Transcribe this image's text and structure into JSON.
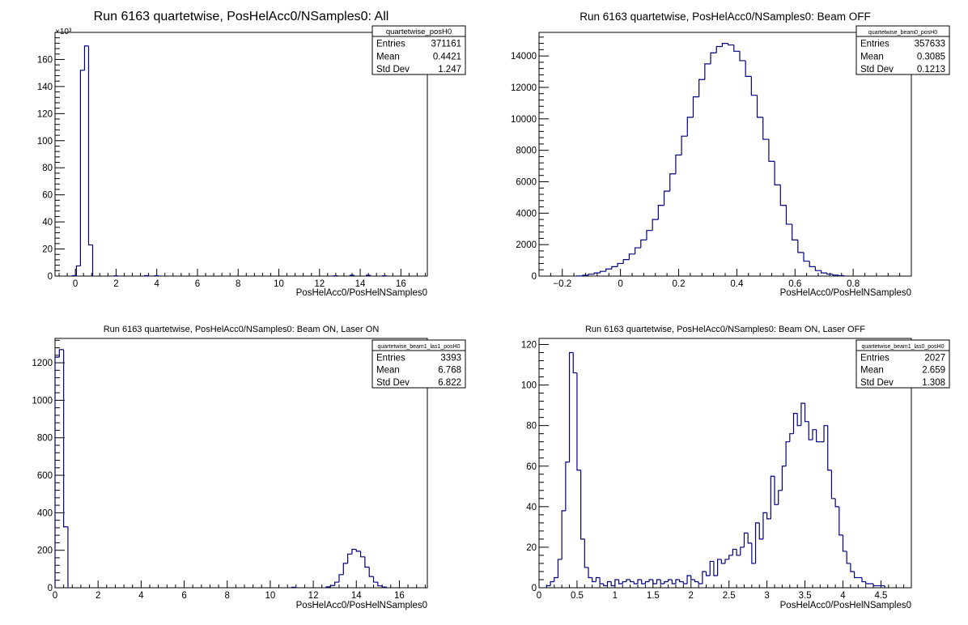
{
  "axis_color": "#000000",
  "line_color": "#000080",
  "chart_data": [
    {
      "type": "histogram",
      "title": "Run 6163 quartetwise, PosHelAcc0/NSamples0: All",
      "xlabel": "PosHelAcc0/PosHelNSamples0",
      "ylabel": "",
      "y_multiplier": "×10³",
      "xlim": [
        -1,
        17.3
      ],
      "ylim": [
        0,
        180
      ],
      "xticks": [
        0,
        2,
        4,
        6,
        8,
        10,
        12,
        14,
        16
      ],
      "xtick_labels": [
        "0",
        "2",
        "4",
        "6",
        "8",
        "10",
        "12",
        "14",
        "16"
      ],
      "yticks": [
        0,
        20,
        40,
        60,
        80,
        100,
        120,
        140,
        160
      ],
      "ytick_labels": [
        "0",
        "20",
        "40",
        "60",
        "80",
        "100",
        "120",
        "140",
        "160"
      ],
      "x": [
        -0.05,
        0.15,
        0.35,
        0.55,
        0.75,
        2.0,
        3.5,
        4.0,
        12.8,
        13.6,
        14.4,
        15.2
      ],
      "bin_width": 0.2,
      "values": [
        0.3,
        7.5,
        152,
        170,
        23,
        0.15,
        0.3,
        0.3,
        0.25,
        0.6,
        0.6,
        0.25
      ],
      "stats": {
        "name": "quartetwise_posH0",
        "rows": [
          {
            "label": "Entries",
            "value": "371161"
          },
          {
            "label": "Mean",
            "value": "0.4421"
          },
          {
            "label": "Std Dev",
            "value": "1.247"
          }
        ]
      }
    },
    {
      "type": "histogram",
      "title": "Run 6163 quartetwise, PosHelAcc0/NSamples0: Beam OFF",
      "xlabel": "PosHelAcc0/PosHelNSamples0",
      "ylabel": "",
      "xlim": [
        -0.28,
        1.0
      ],
      "ylim": [
        0,
        15500
      ],
      "xticks": [
        -0.2,
        0,
        0.2,
        0.4,
        0.6,
        0.8
      ],
      "xtick_labels": [
        "−0.2",
        "0",
        "0.2",
        "0.4",
        "0.6",
        "0.8"
      ],
      "yticks": [
        0,
        2000,
        4000,
        6000,
        8000,
        10000,
        12000,
        14000
      ],
      "ytick_labels": [
        "0",
        "2000",
        "4000",
        "6000",
        "8000",
        "10000",
        "12000",
        "14000"
      ],
      "x": [
        -0.14,
        -0.12,
        -0.1,
        -0.08,
        -0.06,
        -0.04,
        -0.02,
        0.0,
        0.02,
        0.04,
        0.06,
        0.08,
        0.1,
        0.12,
        0.14,
        0.16,
        0.18,
        0.2,
        0.22,
        0.24,
        0.26,
        0.28,
        0.3,
        0.32,
        0.34,
        0.36,
        0.38,
        0.4,
        0.42,
        0.44,
        0.46,
        0.48,
        0.5,
        0.52,
        0.54,
        0.56,
        0.58,
        0.6,
        0.62,
        0.64,
        0.66,
        0.68,
        0.7,
        0.72,
        0.74,
        0.76
      ],
      "bin_width": 0.02,
      "values": [
        10,
        50,
        120,
        200,
        300,
        450,
        600,
        800,
        1050,
        1400,
        1800,
        2300,
        2900,
        3600,
        4500,
        5400,
        6500,
        7700,
        8900,
        10100,
        11400,
        12500,
        13500,
        14200,
        14600,
        14800,
        14700,
        14300,
        13700,
        12700,
        11500,
        10100,
        8700,
        7300,
        5800,
        4500,
        3300,
        2300,
        1500,
        950,
        600,
        350,
        200,
        120,
        60,
        30
      ],
      "stats": {
        "name": "quartetwise_beam0_posH0",
        "rows": [
          {
            "label": "Entries",
            "value": "357633"
          },
          {
            "label": "Mean",
            "value": "0.3085"
          },
          {
            "label": "Std Dev",
            "value": "0.1213"
          }
        ]
      }
    },
    {
      "type": "histogram",
      "title": "Run 6163 quartetwise, PosHelAcc0/NSamples0: Beam ON, Laser ON",
      "xlabel": "PosHelAcc0/PosHelNSamples0",
      "ylabel": "",
      "xlim": [
        0,
        17.3
      ],
      "ylim": [
        0,
        1330
      ],
      "xticks": [
        0,
        2,
        4,
        6,
        8,
        10,
        12,
        14,
        16
      ],
      "xtick_labels": [
        "0",
        "2",
        "4",
        "6",
        "8",
        "10",
        "12",
        "14",
        "16"
      ],
      "yticks": [
        0,
        200,
        400,
        600,
        800,
        1000,
        1200
      ],
      "ytick_labels": [
        "0",
        "200",
        "400",
        "600",
        "800",
        "1000",
        "1200"
      ],
      "x": [
        0.1,
        0.3,
        0.5,
        11.1,
        12.7,
        12.9,
        13.1,
        13.3,
        13.5,
        13.7,
        13.9,
        14.1,
        14.3,
        14.5,
        14.7,
        14.9,
        15.1,
        15.3
      ],
      "bin_width": 0.2,
      "values": [
        1230,
        1270,
        325,
        3,
        5,
        12,
        30,
        70,
        130,
        180,
        205,
        195,
        165,
        110,
        60,
        30,
        10,
        4
      ],
      "stats": {
        "name": "quartetwise_beam1_las1_posH0",
        "rows": [
          {
            "label": "Entries",
            "value": "3393"
          },
          {
            "label": "Mean",
            "value": "6.768"
          },
          {
            "label": "Std Dev",
            "value": "6.822"
          }
        ]
      }
    },
    {
      "type": "histogram",
      "title": "Run 6163 quartetwise, PosHelAcc0/NSamples0: Beam ON, Laser OFF",
      "xlabel": "PosHelAcc0/PosHelNSamples0",
      "ylabel": "",
      "xlim": [
        0,
        4.9
      ],
      "ylim": [
        0,
        123
      ],
      "xticks": [
        0,
        0.5,
        1,
        1.5,
        2,
        2.5,
        3,
        3.5,
        4,
        4.5
      ],
      "xtick_labels": [
        "0",
        "0.5",
        "1",
        "1.5",
        "2",
        "2.5",
        "3",
        "3.5",
        "4",
        "4.5"
      ],
      "yticks": [
        0,
        20,
        40,
        60,
        80,
        100,
        120
      ],
      "ytick_labels": [
        "0",
        "20",
        "40",
        "60",
        "80",
        "100",
        "120"
      ],
      "x": [
        0.125,
        0.175,
        0.225,
        0.275,
        0.325,
        0.375,
        0.425,
        0.475,
        0.525,
        0.575,
        0.625,
        0.675,
        0.725,
        0.775,
        0.825,
        0.875,
        0.925,
        0.975,
        1.025,
        1.075,
        1.125,
        1.175,
        1.225,
        1.275,
        1.325,
        1.375,
        1.425,
        1.475,
        1.525,
        1.575,
        1.625,
        1.675,
        1.725,
        1.775,
        1.825,
        1.875,
        1.925,
        1.975,
        2.025,
        2.075,
        2.125,
        2.175,
        2.225,
        2.275,
        2.325,
        2.375,
        2.425,
        2.475,
        2.525,
        2.575,
        2.625,
        2.675,
        2.725,
        2.775,
        2.825,
        2.875,
        2.925,
        2.975,
        3.025,
        3.075,
        3.125,
        3.175,
        3.225,
        3.275,
        3.325,
        3.375,
        3.425,
        3.475,
        3.525,
        3.575,
        3.625,
        3.675,
        3.725,
        3.775,
        3.825,
        3.875,
        3.925,
        3.975,
        4.025,
        4.075,
        4.125,
        4.175,
        4.225,
        4.275,
        4.325,
        4.375,
        4.425,
        4.475,
        4.525
      ],
      "bin_width": 0.05,
      "values": [
        1,
        3,
        5,
        14,
        38,
        62,
        116,
        106,
        58,
        24,
        10,
        5,
        3,
        5,
        2,
        1,
        3,
        1,
        4,
        2,
        3,
        4,
        3,
        2,
        4,
        2,
        3,
        4,
        2,
        4,
        2,
        3,
        4,
        2,
        4,
        3,
        2,
        6,
        4,
        3,
        2,
        8,
        6,
        13,
        6,
        14,
        12,
        14,
        16,
        19,
        16,
        20,
        27,
        22,
        12,
        32,
        24,
        37,
        34,
        55,
        41,
        48,
        60,
        72,
        76,
        86,
        80,
        91,
        82,
        73,
        78,
        72,
        72,
        80,
        58,
        44,
        40,
        26,
        18,
        12,
        8,
        5,
        5,
        3,
        2,
        2,
        1,
        1,
        1
      ],
      "stats": {
        "name": "quartetwise_beam1_las0_posH0",
        "rows": [
          {
            "label": "Entries",
            "value": "2027"
          },
          {
            "label": "Mean",
            "value": "2.659"
          },
          {
            "label": "Std Dev",
            "value": "1.308"
          }
        ]
      }
    }
  ]
}
